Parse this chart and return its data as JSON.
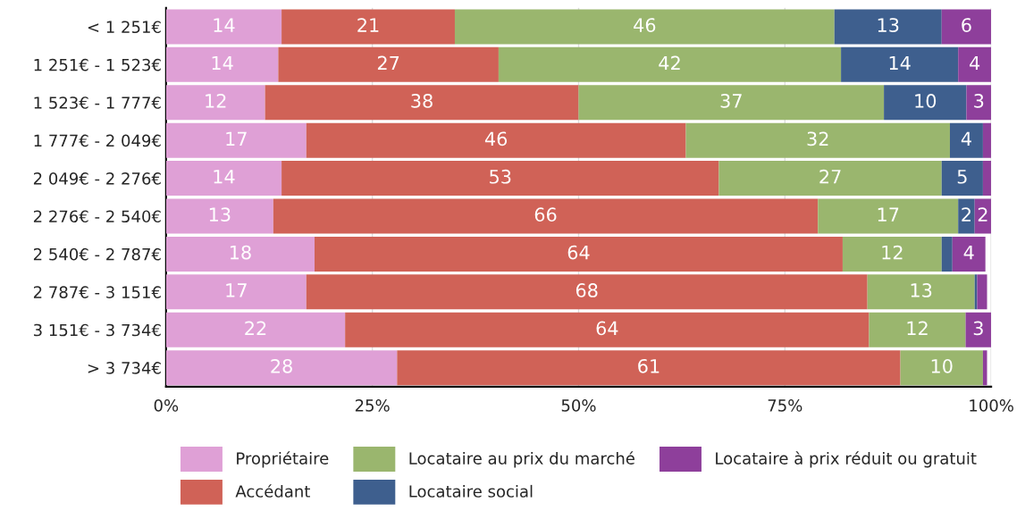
{
  "chart_data": {
    "type": "bar",
    "orientation": "horizontal",
    "stacked": true,
    "categories": [
      "< 1 251€",
      "1 251€ - 1 523€",
      "1 523€ - 1 777€",
      "1 777€ - 2 049€",
      "2 049€ - 2 276€",
      "2 276€ - 2 540€",
      "2 540€ - 2 787€",
      "2 787€ - 3 151€",
      "3 151€ - 3 734€",
      "> 3 734€"
    ],
    "series": [
      {
        "name": "Propriétaire",
        "color": "#dfa0d6",
        "values": [
          14,
          13.6,
          12,
          17,
          14,
          13,
          18,
          17,
          21.7,
          28
        ],
        "value_labels": [
          "14",
          "14",
          "12",
          "17",
          "14",
          "13",
          "18",
          "17",
          "22",
          "28"
        ]
      },
      {
        "name": "Accédant",
        "color": "#d06257",
        "values": [
          21,
          26.7,
          38,
          46,
          53,
          66,
          64,
          68,
          63.5,
          61
        ],
        "value_labels": [
          "21",
          "27",
          "38",
          "46",
          "53",
          "66",
          "64",
          "68",
          "64",
          "61"
        ]
      },
      {
        "name": "Locataire au prix du marché",
        "color": "#9ab66e",
        "values": [
          46,
          41.5,
          37,
          32,
          27,
          17,
          12,
          13,
          11.7,
          10
        ],
        "value_labels": [
          "46",
          "42",
          "37",
          "32",
          "27",
          "17",
          "12",
          "13",
          "12",
          "10"
        ]
      },
      {
        "name": "Locataire social",
        "color": "#3e5f8e",
        "values": [
          13,
          14.2,
          10,
          4,
          5,
          2,
          1.3,
          0.3,
          0,
          0
        ],
        "value_labels": [
          "13",
          "14",
          "10",
          "4",
          "5",
          "2",
          null,
          null,
          null,
          null
        ]
      },
      {
        "name": "Locataire à prix réduit ou gratuit",
        "color": "#8e3f9b",
        "values": [
          6,
          4,
          3,
          1,
          1,
          2,
          4,
          1.2,
          3.1,
          0.5
        ],
        "value_labels": [
          "6",
          "4",
          "3",
          null,
          null,
          "2",
          "4",
          null,
          "3",
          null
        ]
      }
    ],
    "xlim": [
      0,
      100
    ],
    "xticks": [
      {
        "value": 0,
        "label": "0%"
      },
      {
        "value": 25,
        "label": "25%"
      },
      {
        "value": 50,
        "label": "50%"
      },
      {
        "value": 75,
        "label": "75%"
      },
      {
        "value": 100,
        "label": "100%"
      }
    ],
    "grid": "x",
    "legend": "bottom"
  }
}
